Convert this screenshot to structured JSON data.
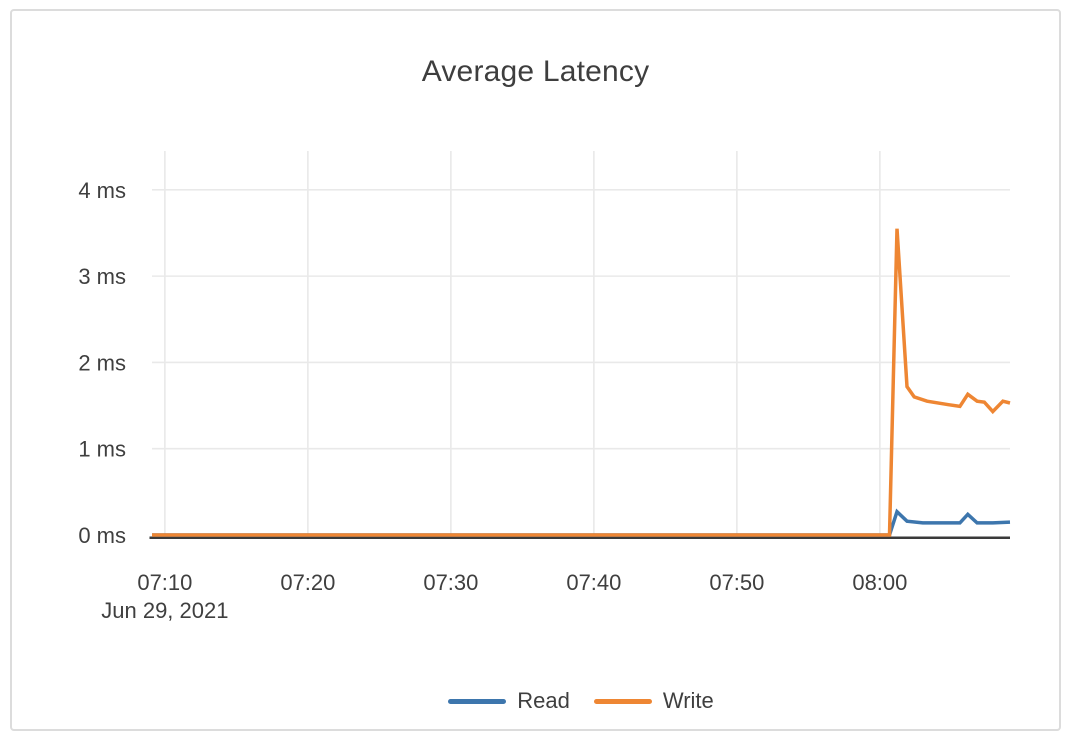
{
  "card": {
    "title": "Average Latency"
  },
  "chart_data": {
    "type": "line",
    "title": "Average Latency",
    "xlabel": "",
    "ylabel": "",
    "grid": true,
    "legend_position": "bottom-center",
    "x_axis": {
      "date_label": "Jun 29, 2021",
      "unit": "time of day (HH:MM)",
      "xlim_minutes_after_0700": [
        9.1,
        69.1
      ],
      "ticks": [
        {
          "minutes": 10,
          "label": "07:10"
        },
        {
          "minutes": 20,
          "label": "07:20"
        },
        {
          "minutes": 30,
          "label": "07:30"
        },
        {
          "minutes": 40,
          "label": "07:40"
        },
        {
          "minutes": 50,
          "label": "07:50"
        },
        {
          "minutes": 60,
          "label": "08:00"
        }
      ]
    },
    "y_axis": {
      "unit": "ms",
      "ylim": [
        0,
        4.45
      ],
      "ticks": [
        {
          "value": 0,
          "label": "0 ms"
        },
        {
          "value": 1,
          "label": "1 ms"
        },
        {
          "value": 2,
          "label": "2 ms"
        },
        {
          "value": 3,
          "label": "3 ms"
        },
        {
          "value": 4,
          "label": "4 ms"
        }
      ]
    },
    "series": [
      {
        "name": "Read",
        "color": "#3D76AD",
        "points_minutes_ms": [
          [
            9.1,
            0
          ],
          [
            20,
            0
          ],
          [
            30,
            0
          ],
          [
            40,
            0
          ],
          [
            50,
            0
          ],
          [
            60.67,
            0
          ],
          [
            61.2,
            0.27
          ],
          [
            61.9,
            0.16
          ],
          [
            63.0,
            0.14
          ],
          [
            65.6,
            0.14
          ],
          [
            66.15,
            0.24
          ],
          [
            66.8,
            0.14
          ],
          [
            67.9,
            0.14
          ],
          [
            69.1,
            0.15
          ]
        ]
      },
      {
        "name": "Write",
        "color": "#EE8633",
        "points_minutes_ms": [
          [
            9.1,
            0
          ],
          [
            20,
            0
          ],
          [
            30,
            0
          ],
          [
            40,
            0
          ],
          [
            50,
            0
          ],
          [
            60.67,
            0
          ],
          [
            61.2,
            3.55
          ],
          [
            61.9,
            1.72
          ],
          [
            62.4,
            1.6
          ],
          [
            63.3,
            1.55
          ],
          [
            64.8,
            1.51
          ],
          [
            65.6,
            1.49
          ],
          [
            66.15,
            1.63
          ],
          [
            66.8,
            1.55
          ],
          [
            67.3,
            1.54
          ],
          [
            67.9,
            1.43
          ],
          [
            68.6,
            1.55
          ],
          [
            69.1,
            1.53
          ]
        ]
      }
    ],
    "style_colors": {
      "grid": "#E9E9E9",
      "axis_baseline": "#3A3A3A",
      "text": "#3F3F3F",
      "card_border": "#DCDCDC"
    }
  }
}
